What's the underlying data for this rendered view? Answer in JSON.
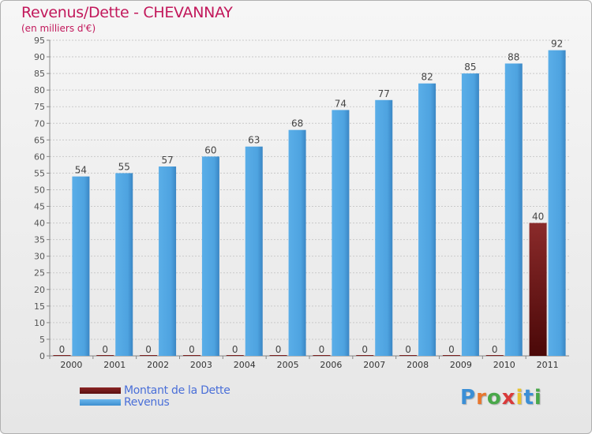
{
  "title": "Revenus/Dette - CHEVANNAY",
  "subtitle": "(en milliers d'€)",
  "colors": {
    "title": "#c2185b",
    "dette": "#7a1e1e",
    "revenus": "#4ea3e0",
    "legend_text": "#4a6fd8"
  },
  "chart_data": {
    "type": "bar",
    "title": "Revenus/Dette - CHEVANNAY",
    "ylabel": "(en milliers d'€)",
    "xlabel": "",
    "categories": [
      "2000",
      "2001",
      "2002",
      "2003",
      "2004",
      "2005",
      "2006",
      "2007",
      "2008",
      "2009",
      "2010",
      "2011"
    ],
    "series": [
      {
        "name": "Montant de la Dette",
        "color": "#7a1e1e",
        "values": [
          0,
          0,
          0,
          0,
          0,
          0,
          0,
          0,
          0,
          0,
          0,
          40
        ]
      },
      {
        "name": "Revenus",
        "color": "#4ea3e0",
        "values": [
          54,
          55,
          57,
          60,
          63,
          68,
          74,
          77,
          82,
          85,
          88,
          92
        ]
      }
    ],
    "ylim": [
      0,
      95
    ],
    "yticks": [
      0,
      5,
      10,
      15,
      20,
      25,
      30,
      35,
      40,
      45,
      50,
      55,
      60,
      65,
      70,
      75,
      80,
      85,
      90,
      95
    ],
    "grid": true,
    "legend_position": "bottom-left"
  },
  "legend": {
    "items": [
      {
        "label": "Montant de la Dette",
        "color": "#7a1e1e"
      },
      {
        "label": "Revenus",
        "color": "#4ea3e0"
      }
    ]
  },
  "logo": {
    "letters": [
      "P",
      "r",
      "o",
      "x",
      "i",
      "t",
      "i"
    ],
    "colors": [
      "#3b8fd6",
      "#e8772e",
      "#49a84a",
      "#d93a3a",
      "#e8c22e",
      "#3b8fd6",
      "#49a84a"
    ]
  }
}
